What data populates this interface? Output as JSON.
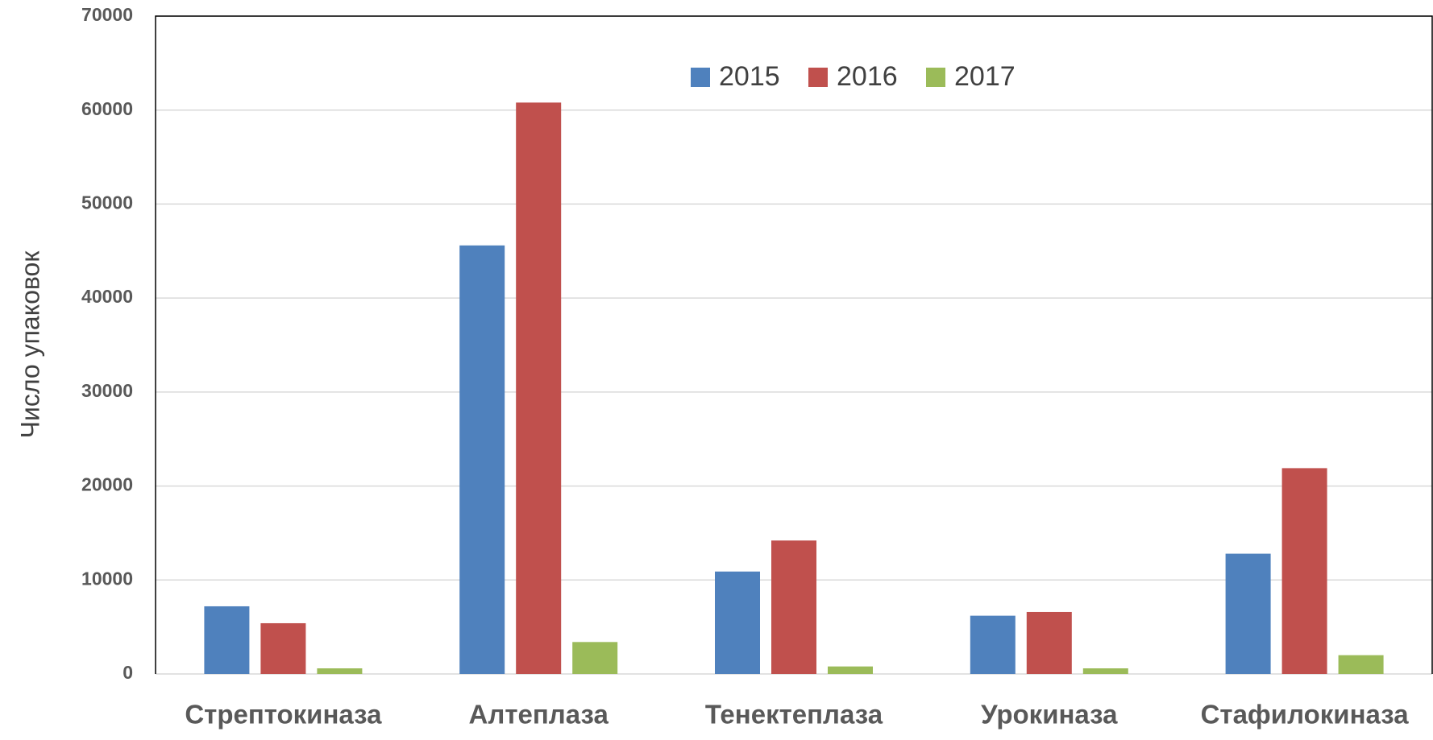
{
  "chart_data": {
    "type": "bar",
    "y_label": "Число упаковок",
    "categories": [
      "Стрептокиназа",
      "Алтеплаза",
      "Тенектеплаза",
      "Урокиназа",
      "Стафилокиназа"
    ],
    "series": [
      {
        "name": "2015",
        "color": "#4f81bd",
        "values": [
          7200,
          45600,
          10900,
          6200,
          12800
        ]
      },
      {
        "name": "2016",
        "color": "#c0504d",
        "values": [
          5400,
          60800,
          14200,
          6600,
          21900
        ]
      },
      {
        "name": "2017",
        "color": "#9bbb59",
        "values": [
          600,
          3400,
          800,
          600,
          2000
        ]
      }
    ],
    "ylim": [
      0,
      70000
    ],
    "yticks": [
      0,
      10000,
      20000,
      30000,
      40000,
      50000,
      60000,
      70000
    ],
    "grid": true,
    "legend": "top"
  }
}
